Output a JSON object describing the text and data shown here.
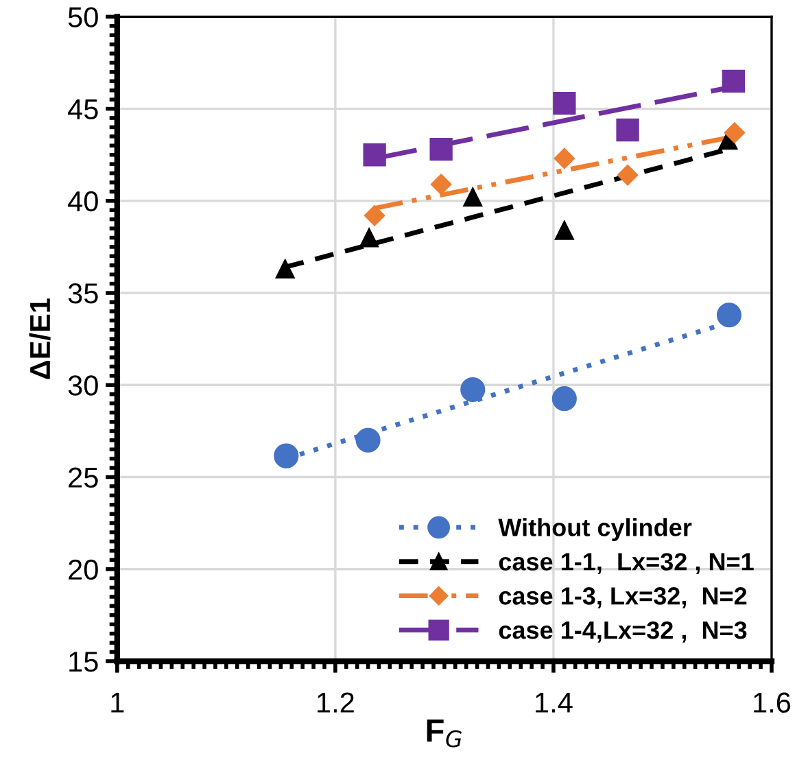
{
  "chart_data": {
    "type": "scatter",
    "xlabel": "F$_{G}$",
    "ylabel": "ΔE/E1",
    "xlim": [
      1,
      1.6
    ],
    "xticks": [
      1,
      1.2,
      1.4,
      1.6
    ],
    "ylim": [
      15,
      50
    ],
    "yticks": [
      15,
      20,
      25,
      30,
      35,
      40,
      45,
      50
    ],
    "grid": true,
    "legend": "bottom right",
    "series": [
      {
        "name": "Without cylinder",
        "marker": "circle",
        "color": "#4472c4",
        "x": [
          1.155,
          1.23,
          1.326,
          1.41,
          1.561
        ],
        "values": [
          26.15,
          27.0,
          29.75,
          29.26,
          33.8
        ]
      },
      {
        "name": "case 1-1,  Lx=32 , N=1",
        "marker": "triangle",
        "color": "#000000",
        "x": [
          1.154,
          1.231,
          1.326,
          1.41,
          1.56
        ],
        "values": [
          36.3,
          38.0,
          40.2,
          38.4,
          43.3
        ]
      },
      {
        "name": "case 1-3, Lx=32,  N=2",
        "marker": "diamond",
        "color": "#ed7d31",
        "x": [
          1.236,
          1.297,
          1.41,
          1.468,
          1.566
        ],
        "values": [
          39.2,
          40.9,
          42.3,
          41.4,
          43.7
        ]
      },
      {
        "name": "case 1-4,Lx=32 ,  N=3",
        "marker": "square",
        "color": "#7030a0",
        "x": [
          1.236,
          1.297,
          1.41,
          1.468,
          1.565
        ],
        "values": [
          42.5,
          42.8,
          45.3,
          43.85,
          46.5
        ]
      },
      {
        "type": "line",
        "line_style": "dotted",
        "color": "#4472c4",
        "x": [
          1.155,
          1.561
        ],
        "values": [
          26.0,
          33.4
        ]
      },
      {
        "type": "line",
        "line_style": "dashed",
        "color": "#000000",
        "x": [
          1.154,
          1.56
        ],
        "values": [
          36.4,
          42.8
        ]
      },
      {
        "type": "line",
        "line_style": "dashdot",
        "color": "#ed7d31",
        "x": [
          1.236,
          1.566
        ],
        "values": [
          39.6,
          43.5
        ]
      },
      {
        "type": "line",
        "line_style": "longdash",
        "color": "#7030a0",
        "x": [
          1.236,
          1.565
        ],
        "values": [
          42.3,
          46.2
        ]
      }
    ]
  }
}
